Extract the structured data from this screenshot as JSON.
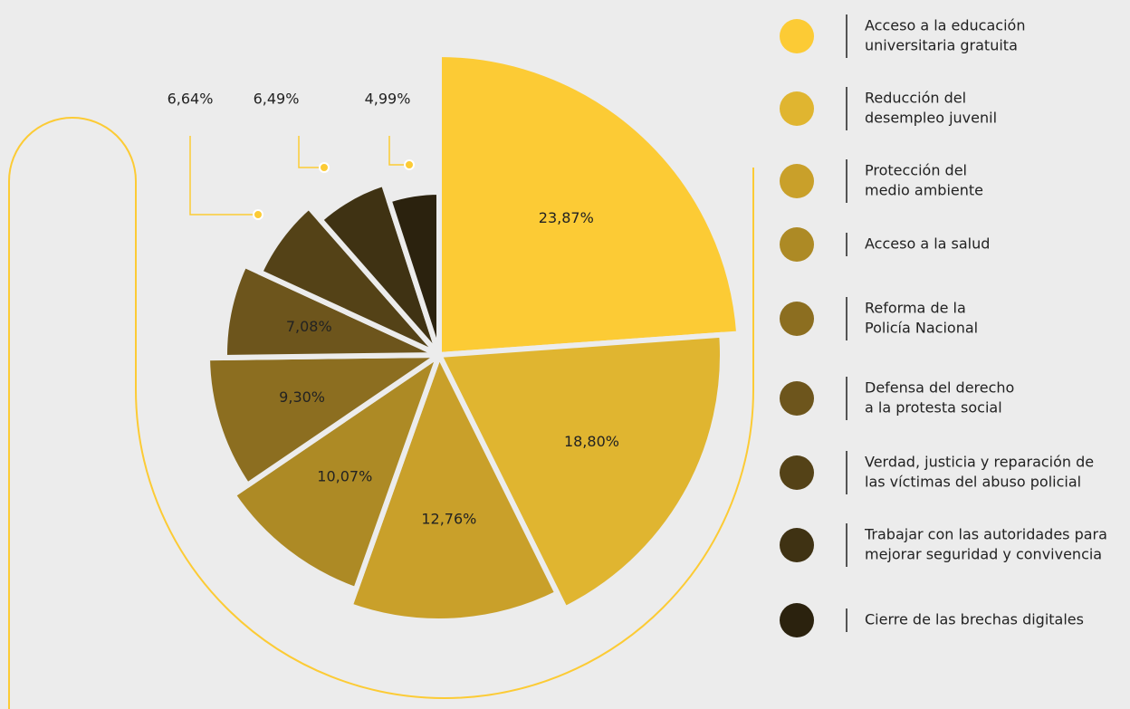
{
  "chart_data": {
    "type": "pie",
    "categories": [
      [
        "Acceso a la educación",
        "universitaria gratuita"
      ],
      [
        "Reducción del",
        "desempleo juvenil"
      ],
      [
        "Protección del",
        "medio ambiente"
      ],
      [
        "Acceso a la salud"
      ],
      [
        "Reforma de la",
        " Policía Nacional"
      ],
      [
        "Defensa del derecho",
        "a la protesta social"
      ],
      [
        "Verdad, justicia y reparación de",
        "las víctimas del abuso policial"
      ],
      [
        "Trabajar con las autoridades para",
        "mejorar seguridad y convivencia"
      ],
      [
        "Cierre de las brechas digitales"
      ]
    ],
    "values": [
      23.87,
      18.8,
      12.76,
      10.07,
      9.3,
      7.08,
      6.64,
      6.49,
      4.99
    ],
    "value_labels": [
      "23,87%",
      "18,80%",
      "12,76%",
      "10,07%",
      "9,30%",
      "7,08%",
      "6,64%",
      "6,49%",
      "4,99%"
    ],
    "colors": [
      "#fccb35",
      "#e0b530",
      "#c9a02a",
      "#ad8a25",
      "#8c6e20",
      "#6d551c",
      "#544217",
      "#3f3213",
      "#2b220e"
    ]
  }
}
